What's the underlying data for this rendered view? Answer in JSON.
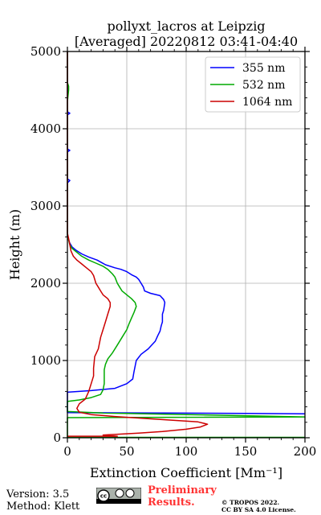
{
  "chart_data": {
    "type": "line",
    "title": "pollyxt_lacros at Leipzig",
    "subtitle": "[Averaged] 20220812 03:41-04:40",
    "xlabel": "Extinction Coefficient [Mm⁻¹]",
    "ylabel": "Height (m)",
    "xlim": [
      0,
      200
    ],
    "ylim": [
      0,
      5000
    ],
    "xticks": [
      "0",
      "50",
      "100",
      "150",
      "200"
    ],
    "yticks": [
      "0",
      "1000",
      "2000",
      "3000",
      "4000",
      "5000"
    ],
    "grid": true,
    "legend_position": "top-right",
    "series": [
      {
        "name": "355 nm",
        "color": "#0000ff",
        "points": [
          [
            200,
            310
          ],
          [
            150,
            315
          ],
          [
            80,
            320
          ],
          [
            0,
            325
          ],
          [
            0,
            420
          ],
          [
            0,
            590
          ],
          [
            20,
            610
          ],
          [
            40,
            640
          ],
          [
            50,
            700
          ],
          [
            55,
            760
          ],
          [
            56,
            850
          ],
          [
            58,
            1000
          ],
          [
            62,
            1080
          ],
          [
            68,
            1150
          ],
          [
            74,
            1250
          ],
          [
            76,
            1320
          ],
          [
            78,
            1380
          ],
          [
            79,
            1450
          ],
          [
            80,
            1500
          ],
          [
            80,
            1550
          ],
          [
            80,
            1600
          ],
          [
            81,
            1650
          ],
          [
            82,
            1750
          ],
          [
            81,
            1790
          ],
          [
            78,
            1840
          ],
          [
            70,
            1870
          ],
          [
            65,
            1900
          ],
          [
            64,
            1950
          ],
          [
            62,
            2000
          ],
          [
            60,
            2050
          ],
          [
            58,
            2080
          ],
          [
            54,
            2110
          ],
          [
            50,
            2150
          ],
          [
            45,
            2180
          ],
          [
            40,
            2200
          ],
          [
            32,
            2240
          ],
          [
            25,
            2300
          ],
          [
            18,
            2340
          ],
          [
            12,
            2380
          ],
          [
            7,
            2430
          ],
          [
            4,
            2470
          ],
          [
            2,
            2520
          ],
          [
            1,
            2560
          ],
          [
            0,
            2600
          ],
          [
            0,
            3300
          ],
          [
            2,
            3330
          ],
          [
            0,
            3350
          ],
          [
            0,
            3700
          ],
          [
            2,
            3720
          ],
          [
            0,
            3740
          ],
          [
            0,
            4180
          ],
          [
            2,
            4200
          ],
          [
            0,
            4220
          ],
          [
            0,
            5000
          ]
        ]
      },
      {
        "name": "532 nm",
        "color": "#00aa00",
        "points": [
          [
            200,
            5
          ],
          [
            0,
            5
          ],
          [
            0,
            20
          ],
          [
            0,
            260
          ],
          [
            200,
            270
          ],
          [
            100,
            300
          ],
          [
            30,
            320
          ],
          [
            0,
            340
          ],
          [
            0,
            470
          ],
          [
            10,
            490
          ],
          [
            20,
            520
          ],
          [
            28,
            560
          ],
          [
            30,
            620
          ],
          [
            31,
            700
          ],
          [
            31,
            800
          ],
          [
            31,
            880
          ],
          [
            32,
            950
          ],
          [
            34,
            1020
          ],
          [
            38,
            1100
          ],
          [
            42,
            1200
          ],
          [
            46,
            1300
          ],
          [
            50,
            1400
          ],
          [
            52,
            1480
          ],
          [
            54,
            1550
          ],
          [
            56,
            1620
          ],
          [
            58,
            1700
          ],
          [
            57,
            1750
          ],
          [
            54,
            1800
          ],
          [
            50,
            1850
          ],
          [
            46,
            1900
          ],
          [
            44,
            1950
          ],
          [
            42,
            2000
          ],
          [
            40,
            2080
          ],
          [
            38,
            2120
          ],
          [
            34,
            2180
          ],
          [
            30,
            2220
          ],
          [
            24,
            2260
          ],
          [
            18,
            2300
          ],
          [
            12,
            2350
          ],
          [
            8,
            2400
          ],
          [
            4,
            2450
          ],
          [
            2,
            2500
          ],
          [
            1,
            2560
          ],
          [
            0,
            2600
          ],
          [
            0,
            4350
          ],
          [
            1,
            4500
          ],
          [
            1,
            4550
          ],
          [
            0,
            4600
          ],
          [
            0,
            5000
          ]
        ]
      },
      {
        "name": "1064 nm",
        "color": "#cc0000",
        "points": [
          [
            0,
            20
          ],
          [
            42,
            20
          ],
          [
            30,
            35
          ],
          [
            60,
            60
          ],
          [
            80,
            80
          ],
          [
            100,
            110
          ],
          [
            112,
            140
          ],
          [
            118,
            175
          ],
          [
            110,
            205
          ],
          [
            90,
            225
          ],
          [
            65,
            250
          ],
          [
            40,
            275
          ],
          [
            20,
            300
          ],
          [
            10,
            330
          ],
          [
            8,
            380
          ],
          [
            10,
            440
          ],
          [
            15,
            500
          ],
          [
            18,
            600
          ],
          [
            20,
            700
          ],
          [
            22,
            800
          ],
          [
            22,
            900
          ],
          [
            23,
            1050
          ],
          [
            26,
            1150
          ],
          [
            28,
            1300
          ],
          [
            30,
            1400
          ],
          [
            32,
            1500
          ],
          [
            34,
            1600
          ],
          [
            36,
            1700
          ],
          [
            36,
            1750
          ],
          [
            34,
            1800
          ],
          [
            30,
            1850
          ],
          [
            28,
            1900
          ],
          [
            26,
            1950
          ],
          [
            24,
            2000
          ],
          [
            22,
            2100
          ],
          [
            20,
            2150
          ],
          [
            16,
            2200
          ],
          [
            12,
            2250
          ],
          [
            8,
            2300
          ],
          [
            5,
            2350
          ],
          [
            3,
            2420
          ],
          [
            2,
            2500
          ],
          [
            1,
            2580
          ],
          [
            0,
            2650
          ],
          [
            0,
            5000
          ]
        ]
      }
    ]
  },
  "footer": {
    "version": "Version: 3.5",
    "method": "Method: Klett",
    "preliminary": [
      "Preliminary",
      "Results."
    ],
    "preliminary_color": "#ff3333",
    "copyright": [
      "© TROPOS 2022.",
      "CC BY SA 4.0 License."
    ]
  }
}
